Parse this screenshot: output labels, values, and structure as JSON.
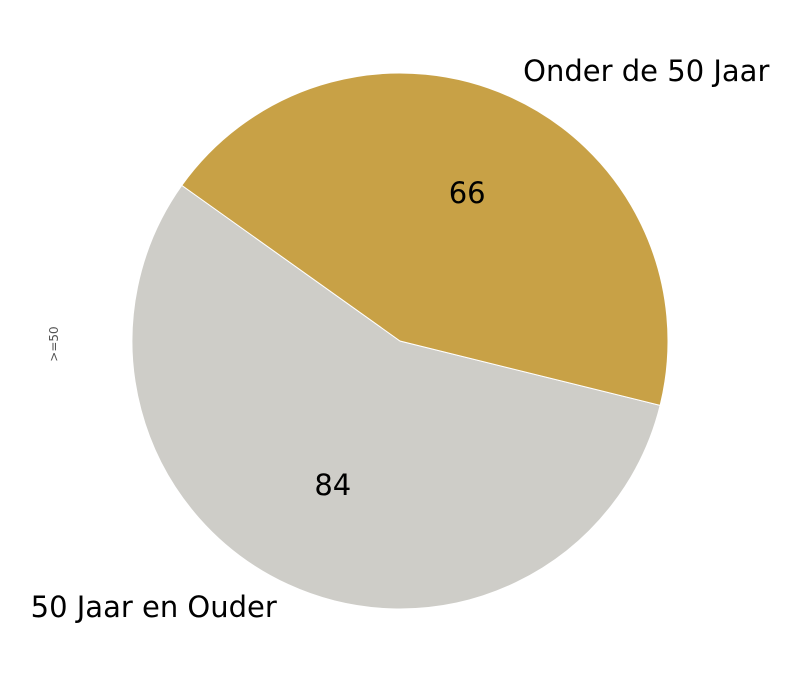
{
  "chart_data": {
    "type": "pie",
    "ylabel": ">=50",
    "categories": [
      "50 Jaar en Ouder",
      "Onder de 50 Jaar"
    ],
    "values": [
      84,
      66
    ],
    "value_labels": [
      "84",
      "66"
    ],
    "colors": [
      "#cecdc8",
      "#c8a146"
    ],
    "legend": "none"
  }
}
